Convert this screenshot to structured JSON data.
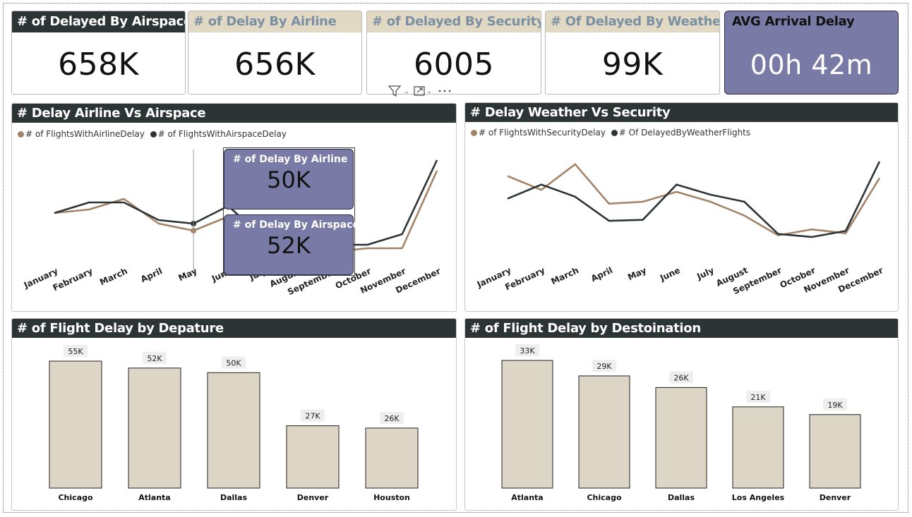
{
  "kpis": [
    {
      "label": "# of Delayed By Airspace",
      "value": "658K"
    },
    {
      "label": "# of Delay By Airline",
      "value": "656K"
    },
    {
      "label": "# of Delayed By Security",
      "value": "6005"
    },
    {
      "label": "# Of Delayed By Weather",
      "value": "99K"
    },
    {
      "label": "AVG Arrival Delay",
      "value": "00h 42m"
    }
  ],
  "toolbar": {
    "filter_icon": "filter-icon",
    "focus_icon": "focus-mode-icon",
    "more_icon": "more-options-icon"
  },
  "colors": {
    "brown": "#a48468",
    "dark": "#2d3436",
    "beige": "#ddd6c7",
    "purple": "#7a7aa6"
  },
  "airline_chart": {
    "title": "# Delay Airline Vs Airspace",
    "legend": [
      "# of FlightsWithAirlineDelay",
      "# of FlightsWithAirspaceDelay"
    ],
    "tooltip": [
      {
        "label": "# of Delay By Airline",
        "value": "50K"
      },
      {
        "label": "# of Delay By Airspace",
        "value": "52K"
      }
    ]
  },
  "weather_chart": {
    "title": "# Delay Weather Vs Security",
    "legend": [
      "# of FlightsWithSecurityDelay",
      "# Of DelayedByWeatherFlights"
    ]
  },
  "departure_chart": {
    "title": "# of Flight Delay by Depature"
  },
  "destination_chart": {
    "title": "# of Flight Delay by Destoination"
  },
  "chart_data": [
    {
      "type": "line",
      "title": "# Delay Airline Vs Airspace",
      "categories": [
        "January",
        "February",
        "March",
        "April",
        "May",
        "June",
        "July",
        "August",
        "September",
        "October",
        "November",
        "December"
      ],
      "series": [
        {
          "name": "# of FlightsWithAirlineDelay",
          "values": [
            55,
            56,
            59,
            52,
            50,
            54,
            47,
            44,
            44,
            45,
            45,
            67
          ]
        },
        {
          "name": "# of FlightsWithAirspaceDelay",
          "values": [
            55,
            58,
            58,
            53,
            52,
            57,
            48,
            46,
            46,
            46,
            49,
            70
          ]
        }
      ],
      "tooltip_month": "May"
    },
    {
      "type": "line",
      "title": "# Delay Weather Vs Security",
      "categories": [
        "January",
        "February",
        "March",
        "April",
        "May",
        "June",
        "July",
        "August",
        "September",
        "October",
        "November",
        "December"
      ],
      "series": [
        {
          "name": "# of FlightsWithSecurityDelay",
          "values": [
            580,
            545,
            610,
            510,
            515,
            540,
            515,
            480,
            430,
            445,
            435,
            575
          ]
        },
        {
          "name": "# Of DelayedByWeatherFlights",
          "values": [
            8600,
            9300,
            8700,
            7500,
            7550,
            9300,
            8800,
            8450,
            6850,
            6700,
            7000,
            10450
          ]
        }
      ]
    },
    {
      "type": "bar",
      "title": "# of Flight Delay by Depature",
      "categories": [
        "Chicago",
        "Atlanta",
        "Dallas",
        "Denver",
        "Houston"
      ],
      "values": [
        55,
        52,
        50,
        27,
        26
      ],
      "labels": [
        "55K",
        "52K",
        "50K",
        "27K",
        "26K"
      ]
    },
    {
      "type": "bar",
      "title": "# of Flight Delay by Destoination",
      "categories": [
        "Atlanta",
        "Chicago",
        "Dallas",
        "Los Angeles",
        "Denver"
      ],
      "values": [
        33,
        29,
        26,
        21,
        19
      ],
      "labels": [
        "33K",
        "29K",
        "26K",
        "21K",
        "19K"
      ]
    }
  ]
}
